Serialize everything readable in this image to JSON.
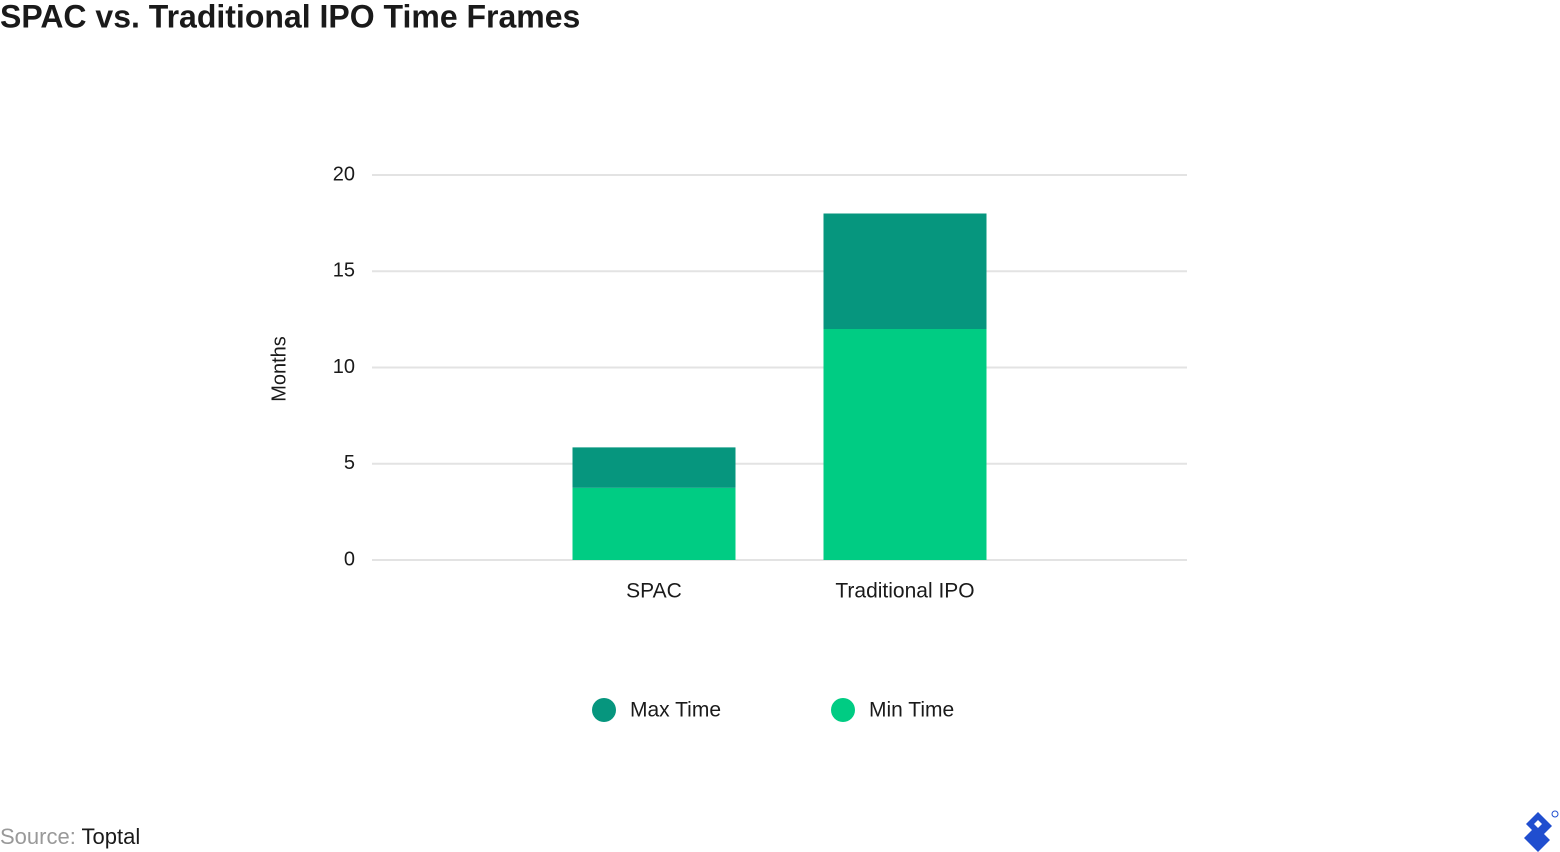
{
  "chart_data": {
    "type": "stacked_bar",
    "title": "SPAC vs. Traditional IPO Time Frames",
    "y_label": "Months",
    "categories": [
      "SPAC",
      "Traditional IPO"
    ],
    "series": [
      {
        "name": "Max Time",
        "color": "#06967e",
        "values": [
          2.1,
          6
        ]
      },
      {
        "name": "Min Time",
        "color": "#00cc83",
        "values": [
          3.75,
          12
        ]
      }
    ],
    "ylim": [
      0,
      20
    ],
    "yticks": [
      0,
      5,
      10,
      15,
      20
    ],
    "grid": true,
    "legend": "bottom",
    "source_label": "Source:",
    "source": "Toptal"
  }
}
